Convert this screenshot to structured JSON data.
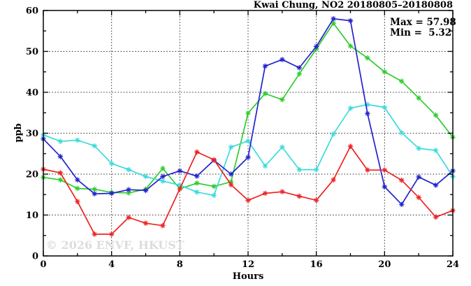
{
  "title": "Kwai Chung, NO2 20180805–20180808",
  "annotation": {
    "max_label": "Max = 57.98",
    "min_label": "Min =  5.32"
  },
  "watermark": "© 2026 ENVF, HKUST",
  "chart_data": {
    "type": "line",
    "title": "Kwai Chung, NO2 20180805–20180808",
    "xlabel": "Hours",
    "ylabel": "ppb",
    "xlim": [
      0,
      24
    ],
    "ylim": [
      0,
      60
    ],
    "x_major_ticks": [
      0,
      4,
      8,
      12,
      16,
      20,
      24
    ],
    "x_minor_ticks": [
      2,
      6,
      10,
      14,
      18,
      22
    ],
    "y_major_ticks": [
      0,
      10,
      20,
      30,
      40,
      50,
      60
    ],
    "y_minor_ticks": [
      5,
      15,
      25,
      35,
      45,
      55
    ],
    "grid": "dotted-at-major",
    "legend": "none",
    "marker": "asterisk",
    "x": [
      0,
      1,
      2,
      3,
      4,
      5,
      6,
      7,
      8,
      9,
      10,
      11,
      12,
      13,
      14,
      15,
      16,
      17,
      18,
      19,
      20,
      21,
      22,
      23,
      24
    ],
    "series": [
      {
        "name": "green",
        "color": "#2ecc2e",
        "values": [
          19.2,
          18.6,
          16.5,
          16.3,
          15.5,
          15.4,
          16.3,
          21.4,
          16.4,
          17.8,
          17.0,
          18.1,
          34.9,
          39.7,
          38.2,
          44.5,
          50.6,
          56.9,
          51.3,
          48.4,
          45.0,
          42.7,
          38.6,
          34.4,
          29.0
        ]
      },
      {
        "name": "cyan",
        "color": "#3bdbdb",
        "values": [
          29.6,
          28.0,
          28.3,
          26.9,
          22.6,
          21.1,
          19.4,
          18.3,
          17.3,
          15.6,
          14.8,
          26.6,
          28.1,
          22.0,
          26.6,
          21.1,
          21.1,
          29.8,
          36.1,
          37.0,
          36.3,
          30.1,
          26.3,
          25.8,
          19.4
        ]
      },
      {
        "name": "blue",
        "color": "#2222cc",
        "values": [
          28.6,
          24.3,
          18.6,
          15.2,
          15.3,
          16.2,
          16.0,
          19.4,
          20.8,
          19.5,
          23.4,
          20.0,
          24.1,
          46.4,
          48.0,
          46.0,
          51.2,
          57.98,
          57.5,
          34.8,
          16.9,
          12.6,
          19.3,
          17.3,
          20.8
        ]
      },
      {
        "name": "red",
        "color": "#ee2222",
        "values": [
          21.2,
          20.3,
          13.3,
          5.32,
          5.32,
          9.4,
          8.0,
          7.4,
          16.4,
          25.4,
          23.5,
          17.4,
          13.6,
          15.3,
          15.7,
          14.6,
          13.6,
          18.6,
          26.8,
          21.0,
          21.0,
          18.5,
          14.3,
          9.5,
          11.1
        ]
      }
    ],
    "stats": {
      "max": 57.98,
      "min": 5.32
    }
  }
}
